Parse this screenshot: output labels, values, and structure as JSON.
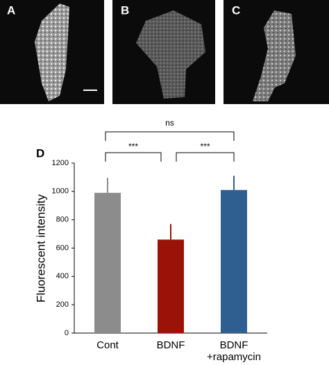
{
  "panels": [
    {
      "label": "A"
    },
    {
      "label": "B"
    },
    {
      "label": "C"
    }
  ],
  "chart_data": {
    "type": "bar",
    "panel_label": "D",
    "ylabel": "Fluorescent intensity",
    "categories": [
      [
        "Cont"
      ],
      [
        "BDNF"
      ],
      [
        "BDNF",
        "+rapamycin"
      ]
    ],
    "series": [
      {
        "name": "Fluorescent intensity",
        "colors": [
          "#8c8c8c",
          "#9b1308",
          "#2f5f91"
        ],
        "values": [
          990,
          660,
          1010
        ],
        "errors": [
          105,
          110,
          100
        ]
      }
    ],
    "ylim": [
      0,
      1200
    ],
    "yticks": [
      0,
      200,
      400,
      600,
      800,
      1000,
      1200
    ],
    "annotations": [
      "ns",
      "***",
      "***"
    ]
  }
}
